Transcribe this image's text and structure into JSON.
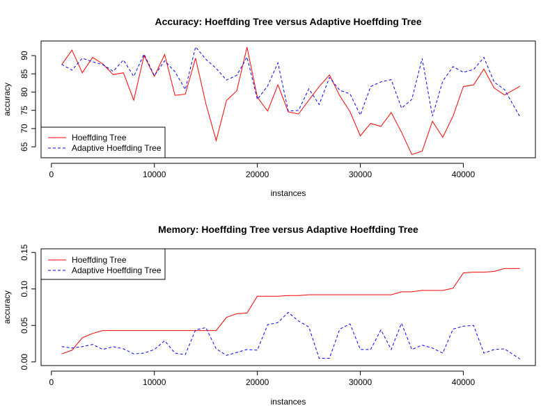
{
  "chart_data": [
    {
      "type": "line",
      "title": "Accuracy: Hoeffding Tree versus Adaptive Hoeffding Tree",
      "xlabel": "instances",
      "ylabel": "accuracy",
      "xlim": [
        -1000,
        47000
      ],
      "ylim": [
        62,
        94
      ],
      "x_ticks": [
        0,
        10000,
        20000,
        30000,
        40000
      ],
      "x_tick_labels": [
        "0",
        "10000",
        "20000",
        "30000",
        "40000"
      ],
      "y_ticks": [
        65,
        70,
        75,
        80,
        85,
        90
      ],
      "y_tick_labels": [
        "65",
        "70",
        "75",
        "80",
        "85",
        "90"
      ],
      "legend_position": "bottom-left",
      "x": [
        1000,
        2000,
        3000,
        4000,
        5000,
        6000,
        7000,
        8000,
        9000,
        10000,
        11000,
        12000,
        13000,
        14000,
        15000,
        16000,
        17000,
        18000,
        19000,
        20000,
        21000,
        22000,
        23000,
        24000,
        25000,
        26000,
        27000,
        28000,
        29000,
        30000,
        31000,
        32000,
        33000,
        34000,
        35000,
        36000,
        37000,
        38000,
        39000,
        40000,
        41000,
        42000,
        43000,
        44000,
        45500
      ],
      "series": [
        {
          "name": "Hoeffding Tree",
          "color": "#ff0000",
          "dash": "solid",
          "values": [
            87.5,
            91.5,
            85.3,
            89.5,
            87.7,
            84.8,
            85.3,
            77.8,
            90.0,
            84.3,
            90.3,
            79.1,
            79.4,
            89.3,
            76.8,
            66.7,
            77.7,
            80.3,
            92.3,
            78.6,
            74.8,
            82.0,
            74.6,
            74.0,
            77.8,
            81.5,
            84.7,
            79.0,
            74.6,
            68.0,
            71.4,
            70.6,
            74.4,
            69.0,
            62.9,
            63.8,
            72.0,
            67.6,
            73.4,
            81.5,
            82.0,
            86.3,
            81.1,
            79.2,
            81.6
          ]
        },
        {
          "name": "Adaptive Hoeffding Tree",
          "color": "#0000ff",
          "dash": "dashed",
          "values": [
            87.6,
            86.0,
            89.3,
            88.3,
            87.5,
            85.7,
            88.8,
            84.3,
            90.4,
            84.5,
            88.6,
            85.6,
            80.7,
            92.4,
            89.0,
            86.5,
            83.3,
            84.6,
            89.6,
            78.0,
            81.7,
            88.0,
            74.8,
            75.0,
            80.9,
            76.6,
            84.0,
            80.5,
            79.5,
            73.7,
            81.5,
            82.8,
            83.4,
            75.6,
            78.0,
            89.2,
            73.4,
            83.0,
            87.0,
            85.4,
            86.2,
            89.5,
            82.7,
            80.7,
            73.2
          ]
        }
      ]
    },
    {
      "type": "line",
      "title": "Memory: Hoeffding Tree versus Adaptive Hoeffding Tree",
      "xlabel": "instances",
      "ylabel": "accuracy",
      "xlim": [
        -1000,
        47000
      ],
      "ylim": [
        -0.005,
        0.155
      ],
      "x_ticks": [
        0,
        10000,
        20000,
        30000,
        40000
      ],
      "x_tick_labels": [
        "0",
        "10000",
        "20000",
        "30000",
        "40000"
      ],
      "y_ticks": [
        0.0,
        0.05,
        0.1,
        0.15
      ],
      "y_tick_labels": [
        "0.00",
        "0.05",
        "0.10",
        "0.15"
      ],
      "legend_position": "top-left",
      "x": [
        1000,
        2000,
        3000,
        4000,
        5000,
        6000,
        7000,
        8000,
        9000,
        10000,
        11000,
        12000,
        13000,
        14000,
        15000,
        16000,
        17000,
        18000,
        19000,
        20000,
        21000,
        22000,
        23000,
        24000,
        25000,
        26000,
        27000,
        28000,
        29000,
        30000,
        31000,
        32000,
        33000,
        34000,
        35000,
        36000,
        37000,
        38000,
        39000,
        40000,
        41000,
        42000,
        43000,
        44000,
        45500
      ],
      "series": [
        {
          "name": "Hoeffding Tree",
          "color": "#ff0000",
          "dash": "solid",
          "values": [
            0.011,
            0.016,
            0.033,
            0.039,
            0.043,
            0.043,
            0.043,
            0.043,
            0.043,
            0.043,
            0.043,
            0.043,
            0.043,
            0.043,
            0.043,
            0.043,
            0.061,
            0.066,
            0.067,
            0.09,
            0.09,
            0.09,
            0.091,
            0.091,
            0.092,
            0.092,
            0.092,
            0.092,
            0.092,
            0.092,
            0.092,
            0.092,
            0.092,
            0.096,
            0.096,
            0.098,
            0.098,
            0.098,
            0.101,
            0.122,
            0.123,
            0.123,
            0.124,
            0.128,
            0.128
          ]
        },
        {
          "name": "Adaptive Hoeffding Tree",
          "color": "#0000ff",
          "dash": "dashed",
          "values": [
            0.021,
            0.019,
            0.021,
            0.024,
            0.017,
            0.021,
            0.018,
            0.011,
            0.012,
            0.017,
            0.029,
            0.012,
            0.01,
            0.044,
            0.047,
            0.018,
            0.009,
            0.013,
            0.017,
            0.016,
            0.051,
            0.054,
            0.068,
            0.056,
            0.048,
            0.005,
            0.005,
            0.045,
            0.052,
            0.017,
            0.017,
            0.044,
            0.017,
            0.053,
            0.017,
            0.023,
            0.019,
            0.012,
            0.045,
            0.049,
            0.05,
            0.012,
            0.017,
            0.018,
            0.004
          ]
        }
      ]
    }
  ]
}
